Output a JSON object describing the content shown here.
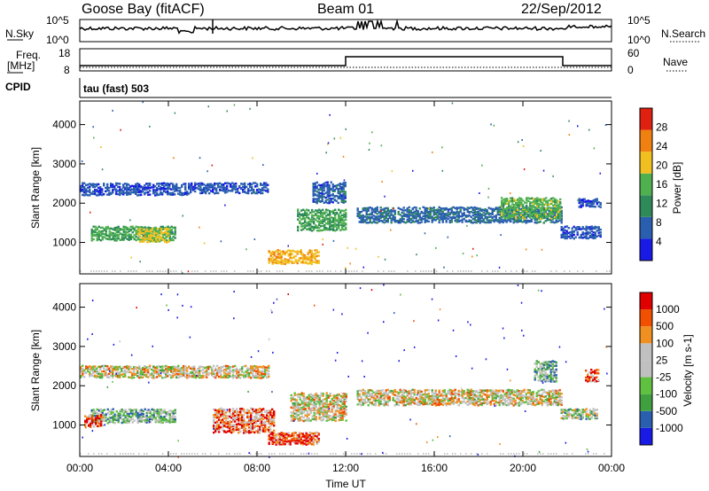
{
  "header": {
    "station": "Goose Bay (fitACF)",
    "beam": "Beam 01",
    "date": "22/Sep/2012"
  },
  "top_panels": {
    "nsky": {
      "label": "N.Sky",
      "ticks": [
        "10^5",
        "10^0"
      ],
      "right_label": "N.Search",
      "right_ticks": [
        "10^5",
        "10^0"
      ]
    },
    "freq": {
      "label_line1": "Freq.",
      "label_line2": "[MHz]",
      "ticks": [
        "18",
        "8"
      ],
      "right_label": "Nave",
      "right_ticks": [
        "60",
        "0"
      ]
    },
    "cpid": {
      "label": "CPID",
      "text": "tau (fast) 503"
    }
  },
  "colors": {
    "power_scale": [
      "#1a1ae6",
      "#2a5fb0",
      "#2f8a5a",
      "#4fb04f",
      "#f0c020",
      "#f08010",
      "#e02010"
    ],
    "velocity_scale": [
      "#e00000",
      "#f05000",
      "#f09020",
      "#c0c0c0",
      "#c0c0c0",
      "#60c040",
      "#40a040",
      "#2a5fb0",
      "#1a1ae6"
    ],
    "ground": "#c8c8c8"
  },
  "chart_data": [
    {
      "type": "heatmap",
      "name": "power",
      "ylabel": "Slant Range [km]",
      "yticks": [
        1000,
        2000,
        3000,
        4000
      ],
      "ylim": [
        200,
        4600
      ],
      "colorbar": {
        "label": "Power [dB]",
        "ticks": [
          4,
          8,
          12,
          16,
          20,
          24,
          28
        ],
        "range": [
          0,
          32
        ]
      },
      "regions": [
        {
          "t0": 0.0,
          "t1": 5.0,
          "r0": 2200,
          "r1": 2500,
          "level": 6
        },
        {
          "t0": 5.0,
          "t1": 8.5,
          "r0": 2250,
          "r1": 2500,
          "level": 6
        },
        {
          "t0": 0.5,
          "t1": 4.3,
          "r0": 1050,
          "r1": 1400,
          "level": 14
        },
        {
          "t0": 2.6,
          "t1": 4.0,
          "r0": 1000,
          "r1": 1350,
          "level": 20
        },
        {
          "t0": 8.5,
          "t1": 10.8,
          "r0": 450,
          "r1": 800,
          "level": 22
        },
        {
          "t0": 9.8,
          "t1": 12.0,
          "r0": 1300,
          "r1": 1800,
          "level": 14
        },
        {
          "t0": 10.5,
          "t1": 12.0,
          "r0": 2000,
          "r1": 2500,
          "level": 7
        },
        {
          "t0": 12.5,
          "t1": 21.7,
          "r0": 1500,
          "r1": 1900,
          "level": 8
        },
        {
          "t0": 19.0,
          "t1": 21.7,
          "r0": 1600,
          "r1": 2100,
          "level": 16
        },
        {
          "t0": 21.7,
          "t1": 23.5,
          "r0": 1100,
          "r1": 1400,
          "level": 6
        },
        {
          "t0": 22.5,
          "t1": 23.5,
          "r0": 1900,
          "r1": 2100,
          "level": 5
        }
      ]
    },
    {
      "type": "heatmap",
      "name": "velocity",
      "ylabel": "Slant Range [km]",
      "yticks": [
        1000,
        2000,
        3000,
        4000
      ],
      "ylim": [
        200,
        4600
      ],
      "xlabel": "Time UT",
      "xticks": [
        "00:00",
        "04:00",
        "08:00",
        "12:00",
        "16:00",
        "20:00",
        "00:00"
      ],
      "xlim": [
        0,
        24
      ],
      "colorbar": {
        "label": "Velocity [m s-1]",
        "ticks": [
          1000,
          500,
          100,
          25,
          -25,
          -100,
          -500,
          -1000
        ]
      },
      "regions": [
        {
          "t0": 0.0,
          "t1": 8.5,
          "r0": 2200,
          "r1": 2500,
          "level": 4
        },
        {
          "t0": 0.5,
          "t1": 4.3,
          "r0": 1050,
          "r1": 1400,
          "level": 6
        },
        {
          "t0": 0.2,
          "t1": 1.0,
          "r0": 950,
          "r1": 1250,
          "level": 1
        },
        {
          "t0": 6.0,
          "t1": 8.8,
          "r0": 800,
          "r1": 1400,
          "level": 2
        },
        {
          "t0": 8.5,
          "t1": 10.8,
          "r0": 500,
          "r1": 800,
          "level": 1
        },
        {
          "t0": 9.5,
          "t1": 12.0,
          "r0": 1100,
          "r1": 1800,
          "level": 4
        },
        {
          "t0": 12.5,
          "t1": 21.7,
          "r0": 1500,
          "r1": 1900,
          "level": 4
        },
        {
          "t0": 21.7,
          "t1": 23.3,
          "r0": 1150,
          "r1": 1400,
          "level": 5
        },
        {
          "t0": 20.5,
          "t1": 21.5,
          "r0": 2100,
          "r1": 2600,
          "level": 6
        },
        {
          "t0": 22.8,
          "t1": 23.4,
          "r0": 2100,
          "r1": 2400,
          "level": 1
        }
      ]
    }
  ]
}
